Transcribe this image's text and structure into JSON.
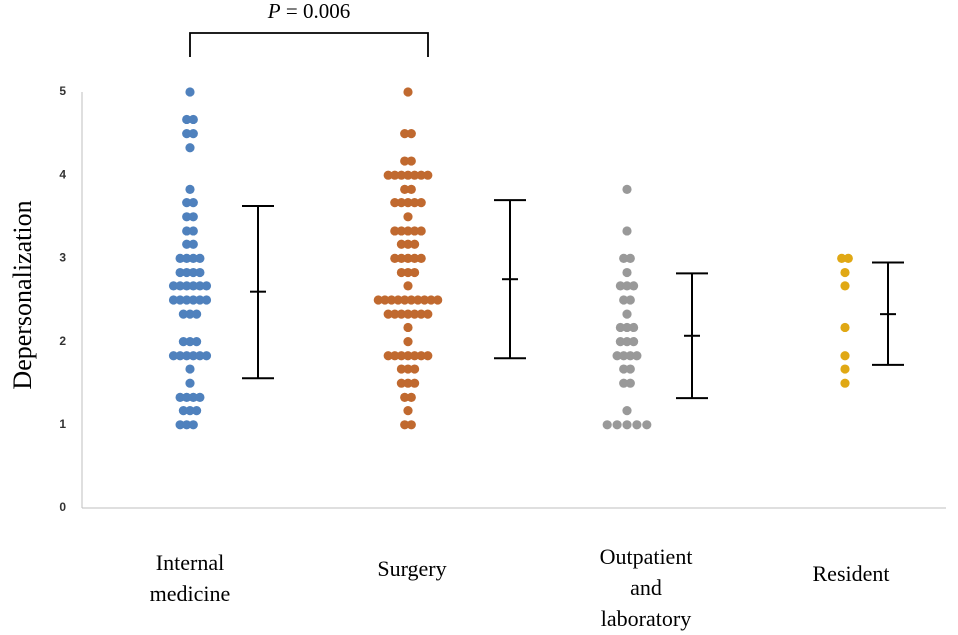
{
  "chart_data": {
    "type": "scatter",
    "ylabel": "Depersonalization",
    "ylim": [
      0,
      5
    ],
    "yticks": [
      0,
      1,
      2,
      3,
      4,
      5
    ],
    "categories": [
      {
        "lines": [
          "Internal",
          "medicine"
        ]
      },
      {
        "lines": [
          "Surgery"
        ]
      },
      {
        "lines": [
          "Outpatient",
          "and",
          "laboratory"
        ]
      },
      {
        "lines": [
          "Resident"
        ]
      }
    ],
    "series": [
      {
        "color": "#4f81bd",
        "points": [
          [
            -0.15,
            1.0
          ],
          [
            -0.05,
            1.0
          ],
          [
            0.05,
            1.0
          ],
          [
            -0.1,
            1.17
          ],
          [
            0.0,
            1.17
          ],
          [
            0.1,
            1.17
          ],
          [
            -0.15,
            1.33
          ],
          [
            -0.05,
            1.33
          ],
          [
            0.05,
            1.33
          ],
          [
            0.15,
            1.33
          ],
          [
            0.0,
            1.5
          ],
          [
            0.0,
            1.67
          ],
          [
            -0.25,
            1.83
          ],
          [
            -0.15,
            1.83
          ],
          [
            -0.05,
            1.83
          ],
          [
            0.05,
            1.83
          ],
          [
            0.15,
            1.83
          ],
          [
            0.25,
            1.83
          ],
          [
            -0.1,
            2.0
          ],
          [
            0.0,
            2.0
          ],
          [
            0.1,
            2.0
          ],
          [
            -0.1,
            2.33
          ],
          [
            0.0,
            2.33
          ],
          [
            0.1,
            2.33
          ],
          [
            -0.25,
            2.5
          ],
          [
            -0.15,
            2.5
          ],
          [
            -0.05,
            2.5
          ],
          [
            0.05,
            2.5
          ],
          [
            0.15,
            2.5
          ],
          [
            0.25,
            2.5
          ],
          [
            -0.25,
            2.67
          ],
          [
            -0.15,
            2.67
          ],
          [
            -0.05,
            2.67
          ],
          [
            0.05,
            2.67
          ],
          [
            0.15,
            2.67
          ],
          [
            0.25,
            2.67
          ],
          [
            -0.15,
            2.83
          ],
          [
            -0.05,
            2.83
          ],
          [
            0.05,
            2.83
          ],
          [
            0.15,
            2.83
          ],
          [
            -0.15,
            3.0
          ],
          [
            -0.05,
            3.0
          ],
          [
            0.05,
            3.0
          ],
          [
            0.15,
            3.0
          ],
          [
            -0.05,
            3.17
          ],
          [
            0.05,
            3.17
          ],
          [
            -0.05,
            3.33
          ],
          [
            0.05,
            3.33
          ],
          [
            -0.05,
            3.5
          ],
          [
            0.05,
            3.5
          ],
          [
            -0.05,
            3.67
          ],
          [
            0.05,
            3.67
          ],
          [
            0.0,
            3.83
          ],
          [
            0.0,
            4.33
          ],
          [
            -0.05,
            4.5
          ],
          [
            0.05,
            4.5
          ],
          [
            -0.05,
            4.67
          ],
          [
            0.05,
            4.67
          ],
          [
            0.0,
            5.0
          ]
        ],
        "mean": 2.6,
        "error_low": 1.56,
        "error_high": 3.63
      },
      {
        "color": "#c0692f",
        "points": [
          [
            -0.05,
            1.0
          ],
          [
            0.05,
            1.0
          ],
          [
            0.0,
            1.17
          ],
          [
            -0.05,
            1.33
          ],
          [
            0.05,
            1.33
          ],
          [
            -0.1,
            1.5
          ],
          [
            0.0,
            1.5
          ],
          [
            0.1,
            1.5
          ],
          [
            -0.1,
            1.67
          ],
          [
            0.0,
            1.67
          ],
          [
            0.1,
            1.67
          ],
          [
            -0.3,
            1.83
          ],
          [
            -0.2,
            1.83
          ],
          [
            -0.1,
            1.83
          ],
          [
            0.0,
            1.83
          ],
          [
            0.1,
            1.83
          ],
          [
            0.2,
            1.83
          ],
          [
            0.3,
            1.83
          ],
          [
            0.0,
            2.0
          ],
          [
            0.0,
            2.17
          ],
          [
            -0.3,
            2.33
          ],
          [
            -0.2,
            2.33
          ],
          [
            -0.1,
            2.33
          ],
          [
            0.0,
            2.33
          ],
          [
            0.1,
            2.33
          ],
          [
            0.2,
            2.33
          ],
          [
            0.3,
            2.33
          ],
          [
            -0.45,
            2.5
          ],
          [
            -0.35,
            2.5
          ],
          [
            -0.25,
            2.5
          ],
          [
            -0.15,
            2.5
          ],
          [
            -0.05,
            2.5
          ],
          [
            0.05,
            2.5
          ],
          [
            0.15,
            2.5
          ],
          [
            0.25,
            2.5
          ],
          [
            0.35,
            2.5
          ],
          [
            0.45,
            2.5
          ],
          [
            0.0,
            2.67
          ],
          [
            -0.1,
            2.83
          ],
          [
            0.0,
            2.83
          ],
          [
            0.1,
            2.83
          ],
          [
            -0.2,
            3.0
          ],
          [
            -0.1,
            3.0
          ],
          [
            0.0,
            3.0
          ],
          [
            0.1,
            3.0
          ],
          [
            0.2,
            3.0
          ],
          [
            -0.1,
            3.17
          ],
          [
            0.0,
            3.17
          ],
          [
            0.1,
            3.17
          ],
          [
            -0.2,
            3.33
          ],
          [
            -0.1,
            3.33
          ],
          [
            0.0,
            3.33
          ],
          [
            0.1,
            3.33
          ],
          [
            0.2,
            3.33
          ],
          [
            0.0,
            3.5
          ],
          [
            -0.2,
            3.67
          ],
          [
            -0.1,
            3.67
          ],
          [
            0.0,
            3.67
          ],
          [
            0.1,
            3.67
          ],
          [
            0.2,
            3.67
          ],
          [
            -0.05,
            3.83
          ],
          [
            0.05,
            3.83
          ],
          [
            -0.3,
            4.0
          ],
          [
            -0.2,
            4.0
          ],
          [
            -0.1,
            4.0
          ],
          [
            0.0,
            4.0
          ],
          [
            0.1,
            4.0
          ],
          [
            0.2,
            4.0
          ],
          [
            0.3,
            4.0
          ],
          [
            -0.05,
            4.17
          ],
          [
            0.05,
            4.17
          ],
          [
            -0.05,
            4.5
          ],
          [
            0.05,
            4.5
          ],
          [
            0.0,
            5.0
          ]
        ],
        "mean": 2.75,
        "error_low": 1.8,
        "error_high": 3.7
      },
      {
        "color": "#999999",
        "points": [
          [
            -0.3,
            1.0
          ],
          [
            -0.15,
            1.0
          ],
          [
            0.0,
            1.0
          ],
          [
            0.15,
            1.0
          ],
          [
            0.3,
            1.0
          ],
          [
            0.0,
            1.17
          ],
          [
            -0.05,
            1.5
          ],
          [
            0.05,
            1.5
          ],
          [
            -0.05,
            1.67
          ],
          [
            0.05,
            1.67
          ],
          [
            -0.15,
            1.83
          ],
          [
            -0.05,
            1.83
          ],
          [
            0.05,
            1.83
          ],
          [
            0.15,
            1.83
          ],
          [
            -0.1,
            2.0
          ],
          [
            0.0,
            2.0
          ],
          [
            0.1,
            2.0
          ],
          [
            -0.1,
            2.17
          ],
          [
            0.0,
            2.17
          ],
          [
            0.1,
            2.17
          ],
          [
            0.0,
            2.33
          ],
          [
            -0.05,
            2.5
          ],
          [
            0.05,
            2.5
          ],
          [
            -0.1,
            2.67
          ],
          [
            0.0,
            2.67
          ],
          [
            0.1,
            2.67
          ],
          [
            0.0,
            2.83
          ],
          [
            -0.05,
            3.0
          ],
          [
            0.05,
            3.0
          ],
          [
            0.0,
            3.33
          ],
          [
            0.0,
            3.83
          ]
        ],
        "mean": 2.07,
        "error_low": 1.32,
        "error_high": 2.82
      },
      {
        "color": "#e0a814",
        "points": [
          [
            0.0,
            1.5
          ],
          [
            0.0,
            1.67
          ],
          [
            0.0,
            1.83
          ],
          [
            0.0,
            2.17
          ],
          [
            0.0,
            2.67
          ],
          [
            0.0,
            2.83
          ],
          [
            -0.05,
            3.0
          ],
          [
            0.05,
            3.0
          ]
        ],
        "mean": 2.33,
        "error_low": 1.72,
        "error_high": 2.95
      }
    ],
    "annotations": [
      {
        "text_italic": "P",
        "text": " = 0.006",
        "between": [
          1,
          2
        ]
      }
    ]
  }
}
